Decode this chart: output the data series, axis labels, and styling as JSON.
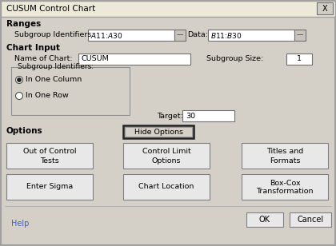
{
  "title": "CUSUM Control Chart",
  "bg_color": "#d4d0c8",
  "white": "#ffffff",
  "light_gray": "#e8e8e8",
  "sections": {
    "ranges_label": "Ranges",
    "subgroup_id_label": "Subgroup Identifiers:",
    "subgroup_id_value": "$A$11:$A$30",
    "data_label": "Data:",
    "data_value": "$B$11:$B$30",
    "chart_input_label": "Chart Input",
    "name_of_chart_label": "Name of Chart:",
    "name_of_chart_value": "CUSUM",
    "subgroup_size_label": "Subgroup Size:",
    "subgroup_size_value": "1",
    "subgroup_identifiers_box": "Subgroup Identifiers:",
    "radio1": "In One Column",
    "radio2": "In One Row",
    "target_label": "Target:",
    "target_value": "30",
    "options_label": "Options",
    "hide_options_btn": "Hide Options",
    "btn1_line1": "Out of Control",
    "btn1_line2": "Tests",
    "btn2_line1": "Control Limit",
    "btn2_line2": "Options",
    "btn3_line1": "Titles and",
    "btn3_line2": "Formats",
    "btn4_line1": "Enter Sigma",
    "btn5_line1": "Chart Location",
    "btn6_line1": "Box-Cox",
    "btn6_line2": "Transformation",
    "help_btn": "Help",
    "ok_btn": "OK",
    "cancel_btn": "Cancel"
  }
}
